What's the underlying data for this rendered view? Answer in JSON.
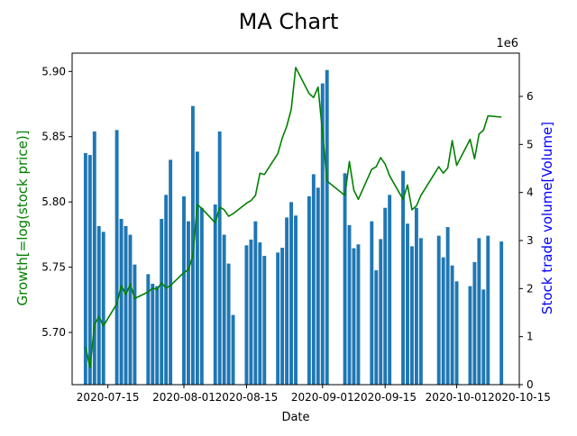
{
  "chart_data": {
    "type": "bar+line",
    "title": "MA Chart",
    "xlabel": "Date",
    "ylabel_left": "Growth[=log(stock price)]",
    "ylabel_right": "Stock trade volume[Volume]",
    "right_axis_multiplier": "1e6",
    "colors": {
      "bars": "#1f77b4",
      "line": "#008000",
      "left_label": "#008000",
      "right_label": "#0000ff"
    },
    "x_range": [
      "2020-07-07",
      "2020-10-15"
    ],
    "x_ticks": [
      "2020-07-15",
      "2020-08-01",
      "2020-08-15",
      "2020-09-01",
      "2020-09-15",
      "2020-10-01",
      "2020-10-15"
    ],
    "y_left_range": [
      5.66,
      5.914
    ],
    "y_left_ticks": [
      "5.70",
      "5.75",
      "5.80",
      "5.85",
      "5.90"
    ],
    "y_right_range": [
      0,
      6.9
    ],
    "y_right_ticks": [
      "0",
      "1",
      "2",
      "3",
      "4",
      "5",
      "6"
    ],
    "bars": [
      [
        "2020-07-10",
        4.82
      ],
      [
        "2020-07-11",
        4.78
      ],
      [
        "2020-07-12",
        5.27
      ],
      [
        "2020-07-13",
        3.3
      ],
      [
        "2020-07-14",
        3.18
      ],
      [
        "2020-07-17",
        5.3
      ],
      [
        "2020-07-18",
        3.45
      ],
      [
        "2020-07-19",
        3.3
      ],
      [
        "2020-07-20",
        3.12
      ],
      [
        "2020-07-21",
        2.5
      ],
      [
        "2020-07-24",
        2.3
      ],
      [
        "2020-07-25",
        2.1
      ],
      [
        "2020-07-26",
        2.05
      ],
      [
        "2020-07-27",
        3.45
      ],
      [
        "2020-07-28",
        3.95
      ],
      [
        "2020-07-29",
        4.68
      ],
      [
        "2020-08-01",
        3.92
      ],
      [
        "2020-08-02",
        3.4
      ],
      [
        "2020-08-03",
        5.8
      ],
      [
        "2020-08-04",
        4.85
      ],
      [
        "2020-08-05",
        3.68
      ],
      [
        "2020-08-08",
        3.75
      ],
      [
        "2020-08-09",
        5.27
      ],
      [
        "2020-08-10",
        3.12
      ],
      [
        "2020-08-11",
        2.52
      ],
      [
        "2020-08-12",
        1.45
      ],
      [
        "2020-08-15",
        2.9
      ],
      [
        "2020-08-16",
        3.02
      ],
      [
        "2020-08-17",
        3.4
      ],
      [
        "2020-08-18",
        2.96
      ],
      [
        "2020-08-19",
        2.68
      ],
      [
        "2020-08-22",
        2.75
      ],
      [
        "2020-08-23",
        2.85
      ],
      [
        "2020-08-24",
        3.48
      ],
      [
        "2020-08-25",
        3.8
      ],
      [
        "2020-08-26",
        3.52
      ],
      [
        "2020-08-29",
        3.92
      ],
      [
        "2020-08-30",
        4.38
      ],
      [
        "2020-08-31",
        4.1
      ],
      [
        "2020-09-01",
        6.27
      ],
      [
        "2020-09-02",
        6.55
      ],
      [
        "2020-09-06",
        4.4
      ],
      [
        "2020-09-07",
        3.32
      ],
      [
        "2020-09-08",
        2.84
      ],
      [
        "2020-09-09",
        2.92
      ],
      [
        "2020-09-12",
        3.4
      ],
      [
        "2020-09-13",
        2.38
      ],
      [
        "2020-09-14",
        3.03
      ],
      [
        "2020-09-15",
        3.68
      ],
      [
        "2020-09-16",
        3.95
      ],
      [
        "2020-09-19",
        4.45
      ],
      [
        "2020-09-20",
        3.35
      ],
      [
        "2020-09-21",
        2.88
      ],
      [
        "2020-09-22",
        3.68
      ],
      [
        "2020-09-23",
        3.05
      ],
      [
        "2020-09-27",
        3.1
      ],
      [
        "2020-09-28",
        2.65
      ],
      [
        "2020-09-29",
        3.28
      ],
      [
        "2020-09-30",
        2.48
      ],
      [
        "2020-10-01",
        2.15
      ],
      [
        "2020-10-04",
        2.05
      ],
      [
        "2020-10-05",
        2.55
      ],
      [
        "2020-10-06",
        3.05
      ],
      [
        "2020-10-07",
        1.98
      ],
      [
        "2020-10-08",
        3.1
      ],
      [
        "2020-10-11",
        2.98
      ]
    ],
    "line": [
      [
        "2020-07-10",
        5.689
      ],
      [
        "2020-07-11",
        5.673
      ],
      [
        "2020-07-12",
        5.706
      ],
      [
        "2020-07-13",
        5.712
      ],
      [
        "2020-07-14",
        5.705
      ],
      [
        "2020-07-17",
        5.722
      ],
      [
        "2020-07-18",
        5.736
      ],
      [
        "2020-07-19",
        5.729
      ],
      [
        "2020-07-20",
        5.737
      ],
      [
        "2020-07-21",
        5.726
      ],
      [
        "2020-07-24",
        5.731
      ],
      [
        "2020-07-25",
        5.734
      ],
      [
        "2020-07-26",
        5.733
      ],
      [
        "2020-07-27",
        5.738
      ],
      [
        "2020-07-28",
        5.734
      ],
      [
        "2020-07-29",
        5.736
      ],
      [
        "2020-08-01",
        5.746
      ],
      [
        "2020-08-02",
        5.748
      ],
      [
        "2020-08-03",
        5.759
      ],
      [
        "2020-08-04",
        5.798
      ],
      [
        "2020-08-05",
        5.795
      ],
      [
        "2020-08-08",
        5.784
      ],
      [
        "2020-08-09",
        5.796
      ],
      [
        "2020-08-10",
        5.794
      ],
      [
        "2020-08-11",
        5.789
      ],
      [
        "2020-08-12",
        5.791
      ],
      [
        "2020-08-15",
        5.799
      ],
      [
        "2020-08-16",
        5.801
      ],
      [
        "2020-08-17",
        5.805
      ],
      [
        "2020-08-18",
        5.822
      ],
      [
        "2020-08-19",
        5.821
      ],
      [
        "2020-08-22",
        5.837
      ],
      [
        "2020-08-23",
        5.849
      ],
      [
        "2020-08-24",
        5.858
      ],
      [
        "2020-08-25",
        5.871
      ],
      [
        "2020-08-26",
        5.903
      ],
      [
        "2020-08-29",
        5.883
      ],
      [
        "2020-08-30",
        5.88
      ],
      [
        "2020-08-31",
        5.888
      ],
      [
        "2020-09-01",
        5.853
      ],
      [
        "2020-09-02",
        5.816
      ],
      [
        "2020-09-06",
        5.805
      ],
      [
        "2020-09-07",
        5.831
      ],
      [
        "2020-09-08",
        5.809
      ],
      [
        "2020-09-09",
        5.802
      ],
      [
        "2020-09-12",
        5.825
      ],
      [
        "2020-09-13",
        5.827
      ],
      [
        "2020-09-14",
        5.834
      ],
      [
        "2020-09-15",
        5.829
      ],
      [
        "2020-09-16",
        5.82
      ],
      [
        "2020-09-19",
        5.802
      ],
      [
        "2020-09-20",
        5.813
      ],
      [
        "2020-09-21",
        5.794
      ],
      [
        "2020-09-22",
        5.797
      ],
      [
        "2020-09-23",
        5.805
      ],
      [
        "2020-09-27",
        5.827
      ],
      [
        "2020-09-28",
        5.822
      ],
      [
        "2020-09-29",
        5.826
      ],
      [
        "2020-09-30",
        5.847
      ],
      [
        "2020-10-01",
        5.828
      ],
      [
        "2020-10-04",
        5.848
      ],
      [
        "2020-10-05",
        5.833
      ],
      [
        "2020-10-06",
        5.852
      ],
      [
        "2020-10-07",
        5.855
      ],
      [
        "2020-10-08",
        5.866
      ],
      [
        "2020-10-11",
        5.865
      ]
    ]
  }
}
